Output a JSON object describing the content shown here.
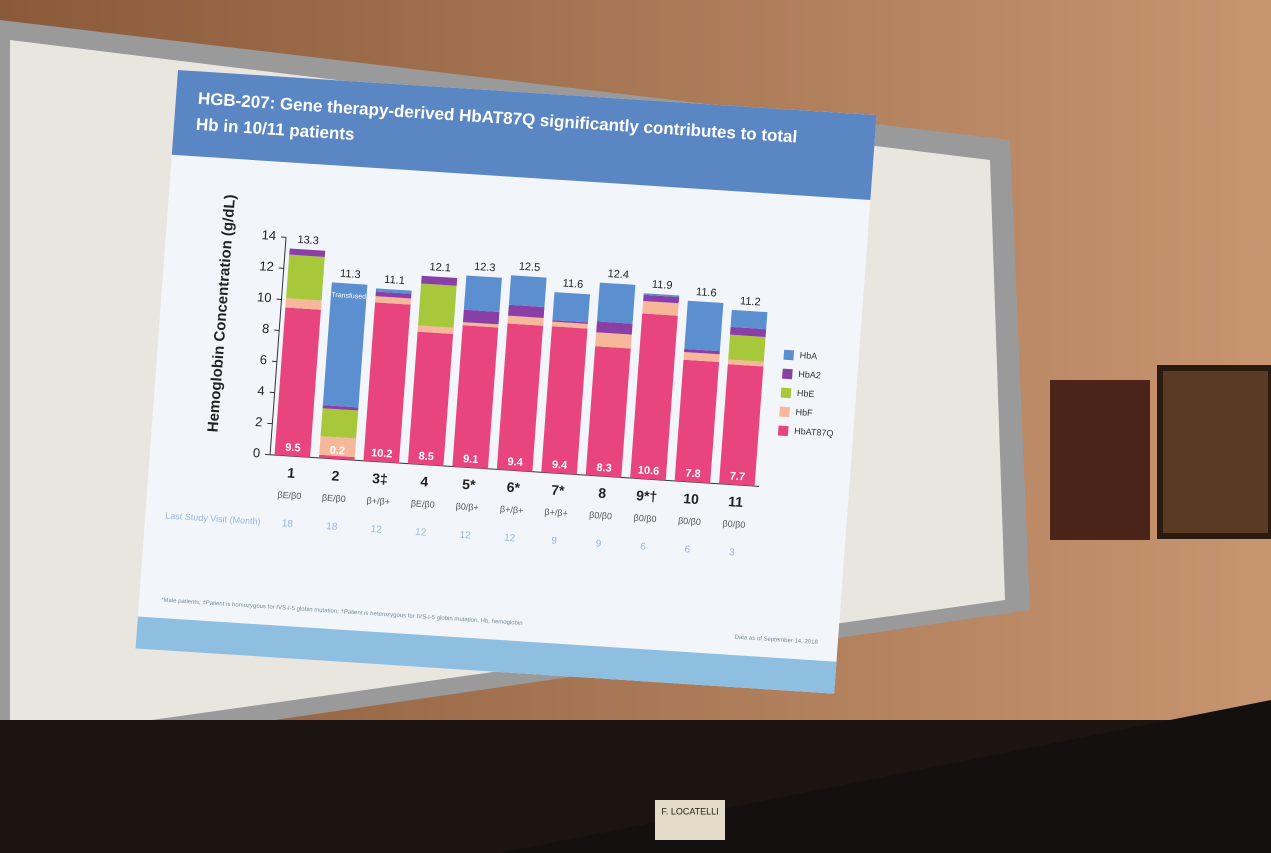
{
  "chart_data": {
    "type": "bar",
    "stacked": true,
    "title_lines": [
      "HGB-207: Gene therapy-derived HbAT87Q significantly contributes to total",
      "Hb in 10/11 patients"
    ],
    "ylabel": "Hemoglobin Concentration (g/dL)",
    "categories": [
      "1",
      "2",
      "3‡",
      "4",
      "5*",
      "6*",
      "7*",
      "8",
      "9*†",
      "10",
      "11"
    ],
    "genotypes": [
      "βE/β0",
      "βE/β0",
      "β+/β+",
      "βE/β0",
      "β0/β+",
      "β+/β+",
      "β+/β+",
      "β0/β0",
      "β0/β0",
      "β0/β0",
      "β0/β0"
    ],
    "row_label": "Last Study Visit (Month)",
    "months": [
      18,
      18,
      12,
      12,
      12,
      12,
      9,
      9,
      6,
      6,
      3
    ],
    "totals": [
      13.3,
      11.3,
      11.1,
      12.1,
      12.3,
      12.5,
      11.6,
      12.4,
      11.9,
      11.6,
      11.2
    ],
    "annotation": "Transfused",
    "series": [
      {
        "name": "HbAT87Q",
        "color": "#e8457f",
        "values": [
          9.5,
          0.2,
          10.2,
          8.5,
          9.1,
          9.4,
          9.4,
          8.3,
          10.6,
          7.8,
          7.7
        ]
      },
      {
        "name": "HbF",
        "color": "#f6b79a",
        "values": [
          0.6,
          1.2,
          0.4,
          0.4,
          0.2,
          0.5,
          0.3,
          0.9,
          0.8,
          0.5,
          0.3
        ]
      },
      {
        "name": "HbE",
        "color": "#a8c83c",
        "values": [
          2.8,
          1.8,
          0,
          2.7,
          0,
          0,
          0,
          0,
          0,
          0,
          1.6
        ]
      },
      {
        "name": "HbA2",
        "color": "#8a3fa6",
        "values": [
          0.4,
          0.2,
          0.3,
          0.5,
          0.8,
          0.7,
          0.1,
          0.7,
          0.4,
          0.2,
          0.5
        ]
      },
      {
        "name": "HbA",
        "color": "#5b8fd0",
        "values": [
          0,
          7.9,
          0.2,
          0,
          2.2,
          1.9,
          1.8,
          2.5,
          0.1,
          3.1,
          1.1
        ]
      }
    ],
    "ylim": [
      0,
      14
    ],
    "yticks": [
      0,
      2,
      4,
      6,
      8,
      10,
      12,
      14
    ],
    "footnote": "*Male patients; ‡Patient is homozygous for IVS-I-5 globin mutation; †Patient is heterozygous for IVS-I-5 globin mutation. Hb, hemoglobin",
    "data_note": "Data as of September 14, 2018"
  },
  "scene": {
    "placards": [
      "F. LOCATELLI"
    ]
  }
}
